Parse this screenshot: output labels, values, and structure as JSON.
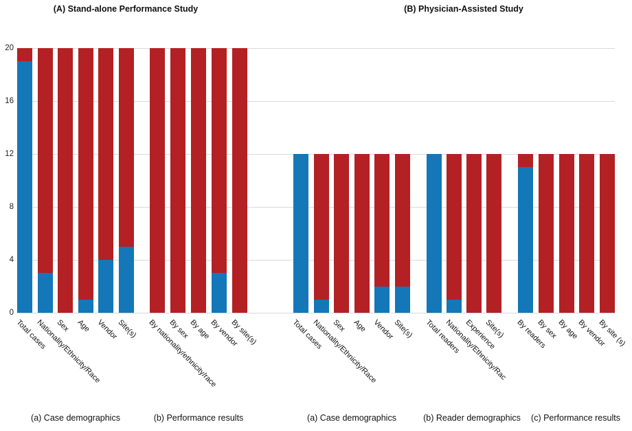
{
  "chart_data": {
    "type": "bar",
    "stacked": true,
    "orientation": "vertical",
    "ylim": [
      0,
      20
    ],
    "yticks": [
      0,
      4,
      8,
      12,
      16,
      20
    ],
    "grid": "horizontal",
    "legend": "none",
    "colors": {
      "blue_segment": "#1377b8",
      "red_segment": "#b32124"
    },
    "panels": [
      {
        "title": "(A) Stand-alone Performance Study",
        "groups": [
          {
            "caption": "(a) Case demographics",
            "categories": [
              "Total cases",
              "Nationality/Ethnicity/Race",
              "Sex",
              "Age",
              "Vendor",
              "Site(s)"
            ],
            "series": [
              {
                "name": "blue",
                "values": [
                  19,
                  3,
                  0,
                  1,
                  4,
                  5
                ]
              },
              {
                "name": "red",
                "values": [
                  1,
                  17,
                  20,
                  19,
                  16,
                  15
                ]
              }
            ]
          },
          {
            "caption": "(b) Performance results",
            "categories": [
              "By nationality/ethnicity/race",
              "By sex",
              "By age",
              "By vendor",
              "By site(s)"
            ],
            "series": [
              {
                "name": "blue",
                "values": [
                  0,
                  0,
                  0,
                  3,
                  0
                ]
              },
              {
                "name": "red",
                "values": [
                  20,
                  20,
                  20,
                  17,
                  20
                ]
              }
            ]
          }
        ]
      },
      {
        "title": "(B) Physician-Assisted Study",
        "groups": [
          {
            "caption": "(a) Case demographics",
            "categories": [
              "Total cases",
              "Nationality/Ethnicity/Race",
              "Sex",
              "Age",
              "Vendor",
              "Site(s)"
            ],
            "series": [
              {
                "name": "blue",
                "values": [
                  12,
                  1,
                  0,
                  0,
                  2,
                  2
                ]
              },
              {
                "name": "red",
                "values": [
                  0,
                  11,
                  12,
                  12,
                  10,
                  10
                ]
              }
            ]
          },
          {
            "caption": "(b) Reader demographics",
            "categories": [
              "Total readers",
              "Nationality/Ethnicity/Rac",
              "Experience",
              "Site(s)"
            ],
            "series": [
              {
                "name": "blue",
                "values": [
                  12,
                  1,
                  0,
                  0
                ]
              },
              {
                "name": "red",
                "values": [
                  0,
                  11,
                  12,
                  12
                ]
              }
            ]
          },
          {
            "caption": "(c) Performance results",
            "categories": [
              "By readers",
              "By sex",
              "By age",
              "By vendor",
              "By site (s)"
            ],
            "series": [
              {
                "name": "blue",
                "values": [
                  11,
                  0,
                  0,
                  0,
                  0
                ]
              },
              {
                "name": "red",
                "values": [
                  1,
                  12,
                  12,
                  12,
                  12
                ]
              }
            ]
          }
        ]
      }
    ]
  }
}
